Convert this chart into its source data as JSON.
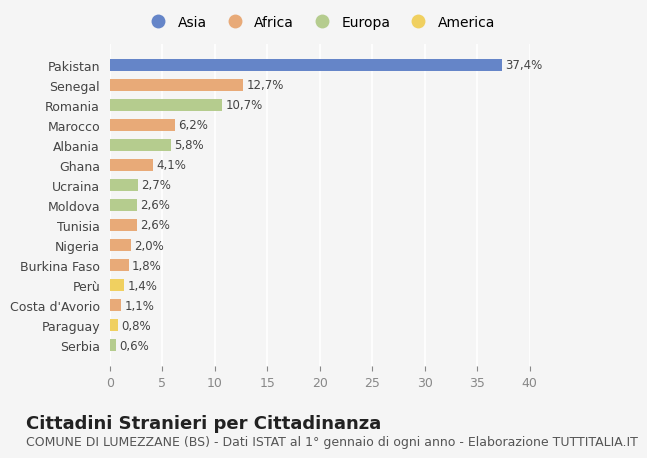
{
  "categories": [
    "Pakistan",
    "Senegal",
    "Romania",
    "Marocco",
    "Albania",
    "Ghana",
    "Ucraina",
    "Moldova",
    "Tunisia",
    "Nigeria",
    "Burkina Faso",
    "Perù",
    "Costa d'Avorio",
    "Paraguay",
    "Serbia"
  ],
  "values": [
    37.4,
    12.7,
    10.7,
    6.2,
    5.8,
    4.1,
    2.7,
    2.6,
    2.6,
    2.0,
    1.8,
    1.4,
    1.1,
    0.8,
    0.6
  ],
  "labels": [
    "37,4%",
    "12,7%",
    "10,7%",
    "6,2%",
    "5,8%",
    "4,1%",
    "2,7%",
    "2,6%",
    "2,6%",
    "2,0%",
    "1,8%",
    "1,4%",
    "1,1%",
    "0,8%",
    "0,6%"
  ],
  "continents": [
    "Asia",
    "Africa",
    "Europa",
    "Africa",
    "Europa",
    "Africa",
    "Europa",
    "Europa",
    "Africa",
    "Africa",
    "Africa",
    "America",
    "Africa",
    "America",
    "Europa"
  ],
  "continent_colors": {
    "Asia": "#6585c8",
    "Africa": "#e8aa78",
    "Europa": "#b5cc8e",
    "America": "#f0d060"
  },
  "legend_order": [
    "Asia",
    "Africa",
    "Europa",
    "America"
  ],
  "xlim": [
    0,
    40
  ],
  "xticks": [
    0,
    5,
    10,
    15,
    20,
    25,
    30,
    35,
    40
  ],
  "title": "Cittadini Stranieri per Cittadinanza",
  "subtitle": "COMUNE DI LUMEZZANE (BS) - Dati ISTAT al 1° gennaio di ogni anno - Elaborazione TUTTITALIA.IT",
  "background_color": "#f5f5f5",
  "bar_height": 0.6,
  "title_fontsize": 13,
  "subtitle_fontsize": 9,
  "label_fontsize": 8.5,
  "tick_fontsize": 9,
  "legend_fontsize": 10
}
